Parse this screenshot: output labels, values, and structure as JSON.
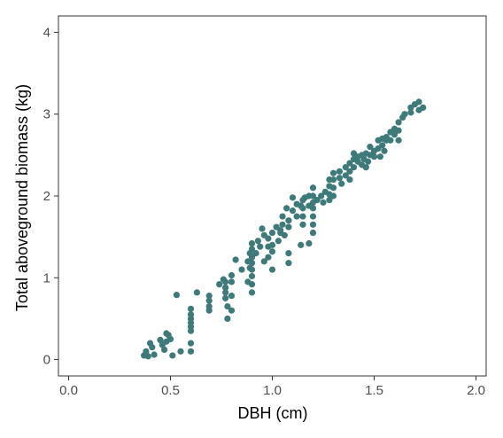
{
  "chart_data": {
    "type": "scatter",
    "xlabel": "DBH (cm)",
    "ylabel": "Total aboveground biomass (kg)",
    "xlim": [
      -0.05,
      2.05
    ],
    "ylim": [
      -0.2,
      4.2
    ],
    "x_ticks": [
      0.0,
      0.5,
      1.0,
      1.5,
      2.0
    ],
    "x_tick_labels": [
      "0.0",
      "0.5",
      "1.0",
      "1.5",
      "2.0"
    ],
    "y_ticks": [
      0,
      1,
      2,
      3,
      4
    ],
    "y_tick_labels": [
      "0",
      "1",
      "2",
      "3",
      "4"
    ],
    "grid": false,
    "point_color": "#3e7a7a",
    "series": [
      {
        "points": [
          [
            0.37,
            0.05
          ],
          [
            0.38,
            0.1
          ],
          [
            0.39,
            0.04
          ],
          [
            0.4,
            0.2
          ],
          [
            0.41,
            0.15
          ],
          [
            0.42,
            0.06
          ],
          [
            0.45,
            0.24
          ],
          [
            0.46,
            0.18
          ],
          [
            0.47,
            0.12
          ],
          [
            0.48,
            0.32
          ],
          [
            0.48,
            0.22
          ],
          [
            0.49,
            0.3
          ],
          [
            0.5,
            0.25
          ],
          [
            0.51,
            0.05
          ],
          [
            0.53,
            0.79
          ],
          [
            0.55,
            0.1
          ],
          [
            0.6,
            0.62
          ],
          [
            0.6,
            0.55
          ],
          [
            0.6,
            0.5
          ],
          [
            0.6,
            0.45
          ],
          [
            0.6,
            0.4
          ],
          [
            0.6,
            0.35
          ],
          [
            0.6,
            0.2
          ],
          [
            0.6,
            0.1
          ],
          [
            0.63,
            0.82
          ],
          [
            0.69,
            0.78
          ],
          [
            0.69,
            0.72
          ],
          [
            0.69,
            0.65
          ],
          [
            0.69,
            0.6
          ],
          [
            0.74,
            0.92
          ],
          [
            0.76,
            0.98
          ],
          [
            0.77,
            0.95
          ],
          [
            0.77,
            0.88
          ],
          [
            0.77,
            0.82
          ],
          [
            0.77,
            0.75
          ],
          [
            0.78,
            0.65
          ],
          [
            0.78,
            0.5
          ],
          [
            0.8,
            1.03
          ],
          [
            0.8,
            0.95
          ],
          [
            0.8,
            0.78
          ],
          [
            0.8,
            0.6
          ],
          [
            0.82,
            1.22
          ],
          [
            0.85,
            1.1
          ],
          [
            0.88,
            1.2
          ],
          [
            0.88,
            0.95
          ],
          [
            0.89,
            1.3
          ],
          [
            0.89,
            1.12
          ],
          [
            0.9,
            1.42
          ],
          [
            0.9,
            1.35
          ],
          [
            0.9,
            1.25
          ],
          [
            0.9,
            1.18
          ],
          [
            0.9,
            1.1
          ],
          [
            0.9,
            1.02
          ],
          [
            0.9,
            0.92
          ],
          [
            0.9,
            0.82
          ],
          [
            0.92,
            1.3
          ],
          [
            0.93,
            1.45
          ],
          [
            0.94,
            1.38
          ],
          [
            0.95,
            1.6
          ],
          [
            0.96,
            1.52
          ],
          [
            0.96,
            1.2
          ],
          [
            0.98,
            1.48
          ],
          [
            0.98,
            1.38
          ],
          [
            0.98,
            1.25
          ],
          [
            1.0,
            1.55
          ],
          [
            1.0,
            1.4
          ],
          [
            1.0,
            1.32
          ],
          [
            1.0,
            1.1
          ],
          [
            1.02,
            1.62
          ],
          [
            1.03,
            1.45
          ],
          [
            1.04,
            1.58
          ],
          [
            1.04,
            1.55
          ],
          [
            1.05,
            1.75
          ],
          [
            1.05,
            1.65
          ],
          [
            1.06,
            1.52
          ],
          [
            1.07,
            1.85
          ],
          [
            1.08,
            1.7
          ],
          [
            1.08,
            1.62
          ],
          [
            1.08,
            1.3
          ],
          [
            1.08,
            1.18
          ],
          [
            1.1,
            1.98
          ],
          [
            1.1,
            1.82
          ],
          [
            1.12,
            1.9
          ],
          [
            1.12,
            1.75
          ],
          [
            1.14,
            1.88
          ],
          [
            1.14,
            1.4
          ],
          [
            1.15,
            1.95
          ],
          [
            1.15,
            1.85
          ],
          [
            1.15,
            1.75
          ],
          [
            1.15,
            1.65
          ],
          [
            1.16,
            1.98
          ],
          [
            1.18,
            2.0
          ],
          [
            1.18,
            1.88
          ],
          [
            1.18,
            1.42
          ],
          [
            1.2,
            2.1
          ],
          [
            1.2,
            2.0
          ],
          [
            1.2,
            1.92
          ],
          [
            1.2,
            1.85
          ],
          [
            1.2,
            1.75
          ],
          [
            1.2,
            1.65
          ],
          [
            1.2,
            1.55
          ],
          [
            1.22,
            1.95
          ],
          [
            1.24,
            2.0
          ],
          [
            1.25,
            1.92
          ],
          [
            1.26,
            2.05
          ],
          [
            1.28,
            2.2
          ],
          [
            1.28,
            2.12
          ],
          [
            1.28,
            2.02
          ],
          [
            1.28,
            1.95
          ],
          [
            1.3,
            2.28
          ],
          [
            1.3,
            2.2
          ],
          [
            1.3,
            2.1
          ],
          [
            1.3,
            2.0
          ],
          [
            1.33,
            2.3
          ],
          [
            1.33,
            2.22
          ],
          [
            1.34,
            2.15
          ],
          [
            1.36,
            2.35
          ],
          [
            1.36,
            2.25
          ],
          [
            1.38,
            2.4
          ],
          [
            1.38,
            2.3
          ],
          [
            1.38,
            2.2
          ],
          [
            1.4,
            2.52
          ],
          [
            1.4,
            2.45
          ],
          [
            1.4,
            2.35
          ],
          [
            1.42,
            2.48
          ],
          [
            1.42,
            2.42
          ],
          [
            1.44,
            2.5
          ],
          [
            1.44,
            2.38
          ],
          [
            1.45,
            2.45
          ],
          [
            1.46,
            2.52
          ],
          [
            1.46,
            2.35
          ],
          [
            1.47,
            2.42
          ],
          [
            1.48,
            2.5
          ],
          [
            1.48,
            2.6
          ],
          [
            1.5,
            2.55
          ],
          [
            1.5,
            2.48
          ],
          [
            1.52,
            2.68
          ],
          [
            1.52,
            2.58
          ],
          [
            1.53,
            2.48
          ],
          [
            1.54,
            2.7
          ],
          [
            1.54,
            2.62
          ],
          [
            1.55,
            2.55
          ],
          [
            1.56,
            2.68
          ],
          [
            1.56,
            2.72
          ],
          [
            1.58,
            2.78
          ],
          [
            1.58,
            2.68
          ],
          [
            1.6,
            2.82
          ],
          [
            1.6,
            2.75
          ],
          [
            1.62,
            2.8
          ],
          [
            1.62,
            2.68
          ],
          [
            1.62,
            2.9
          ],
          [
            1.64,
            2.96
          ],
          [
            1.65,
            3.0
          ],
          [
            1.68,
            3.08
          ],
          [
            1.68,
            3.02
          ],
          [
            1.7,
            3.12
          ],
          [
            1.72,
            3.15
          ],
          [
            1.72,
            3.05
          ],
          [
            1.74,
            3.08
          ]
        ]
      }
    ]
  }
}
